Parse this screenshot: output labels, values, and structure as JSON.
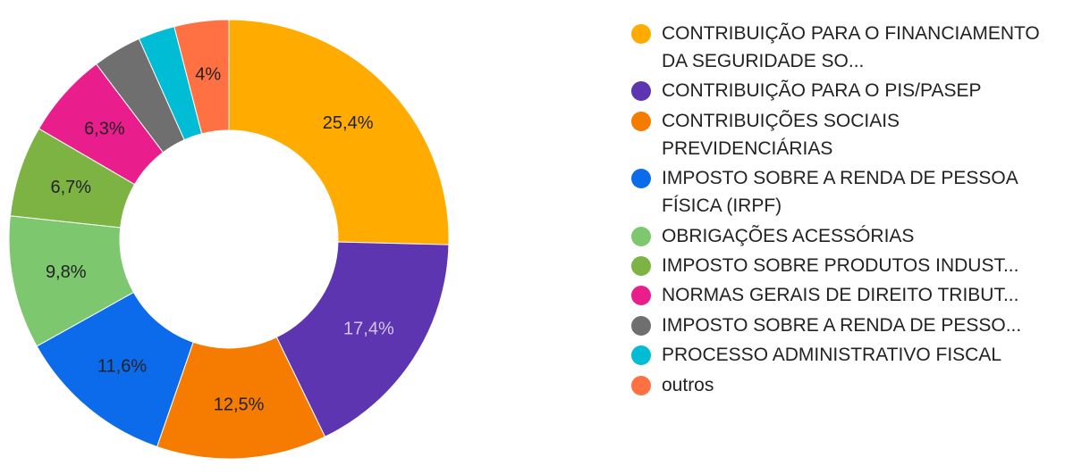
{
  "chart_data": {
    "type": "pie",
    "donut": true,
    "legend_position": "right",
    "slices": [
      {
        "name": "CONTRIBUIÇÃO PARA O FINANCIAMENTO DA SEGURIDADE SO...",
        "value": 25.4,
        "label": "25,4%",
        "color": "#FFAB00",
        "label_color": "#222222"
      },
      {
        "name": "CONTRIBUIÇÃO PARA O PIS/PASEP",
        "value": 17.4,
        "label": "17,4%",
        "color": "#5E35B1",
        "label_color": "#d2c6ee"
      },
      {
        "name": "CONTRIBUIÇÕES SOCIAIS PREVIDENCIÁRIAS",
        "value": 12.5,
        "label": "12,5%",
        "color": "#F57C00",
        "label_color": "#222222"
      },
      {
        "name": "IMPOSTO SOBRE A RENDA DE PESSOA FÍSICA (IRPF)",
        "value": 11.6,
        "label": "11,6%",
        "color": "#0B6BEB",
        "label_color": "#222222"
      },
      {
        "name": "OBRIGAÇÕES ACESSÓRIAS",
        "value": 9.8,
        "label": "9,8%",
        "color": "#7DC86E",
        "label_color": "#222222"
      },
      {
        "name": "IMPOSTO SOBRE PRODUTOS INDUST...",
        "value": 6.7,
        "label": "6,7%",
        "color": "#7CB342",
        "label_color": "#222222"
      },
      {
        "name": "NORMAS GERAIS DE DIREITO TRIBUT...",
        "value": 6.3,
        "label": "6,3%",
        "color": "#E91E8C",
        "label_color": "#222222"
      },
      {
        "name": "IMPOSTO SOBRE A RENDA DE PESSO...",
        "value": 3.6,
        "label": "",
        "color": "#6F6F6F",
        "label_color": "#222222"
      },
      {
        "name": "PROCESSO ADMINISTRATIVO FISCAL",
        "value": 2.7,
        "label": "",
        "color": "#00BCD4",
        "label_color": "#222222"
      },
      {
        "name": "outros",
        "value": 4.0,
        "label": "4%",
        "color": "#FF7043",
        "label_color": "#222222"
      }
    ]
  }
}
